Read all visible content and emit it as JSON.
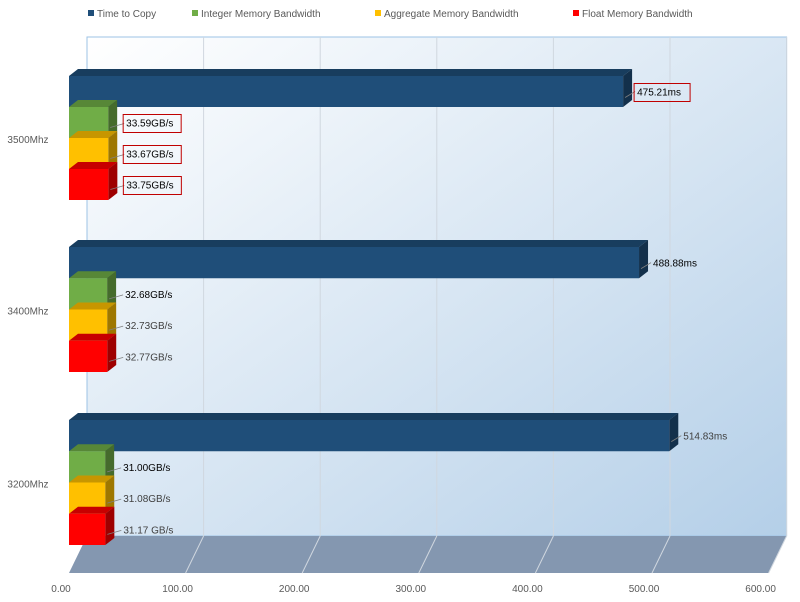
{
  "chart_data": {
    "type": "bar",
    "orientation": "horizontal",
    "style": "3d",
    "categories": [
      "3500Mhz",
      "3400Mhz",
      "3200Mhz"
    ],
    "series": [
      {
        "name": "Time to Copy",
        "color": "#1f4e79",
        "values": [
          475.21,
          488.88,
          514.83
        ],
        "labels": [
          "475.21ms",
          "488.88ms",
          "514.83ms"
        ]
      },
      {
        "name": "Integer Memory Bandwidth",
        "color": "#70ad47",
        "values": [
          33.59,
          32.68,
          31.0
        ],
        "labels": [
          "33.59GB/s",
          "32.68GB/s",
          "31.00GB/s"
        ]
      },
      {
        "name": "Aggregate Memory Bandwidth",
        "color": "#ffc000",
        "values": [
          33.67,
          32.73,
          31.08
        ],
        "labels": [
          "33.67GB/s",
          "32.73GB/s",
          "31.08GB/s"
        ]
      },
      {
        "name": "Float Memory Bandwidth",
        "color": "#ff0000",
        "values": [
          33.75,
          32.77,
          31.17
        ],
        "labels": [
          "33.75GB/s",
          "32.77GB/s",
          "31.17 GB/s"
        ]
      }
    ],
    "highlighted_category": "3500Mhz",
    "xlim": [
      0,
      600
    ],
    "xticks": [
      "0.00",
      "100.00",
      "200.00",
      "300.00",
      "400.00",
      "500.00",
      "600.00"
    ],
    "xlabel": "",
    "ylabel": "",
    "title": "",
    "grid": true,
    "legend_position": "top"
  }
}
